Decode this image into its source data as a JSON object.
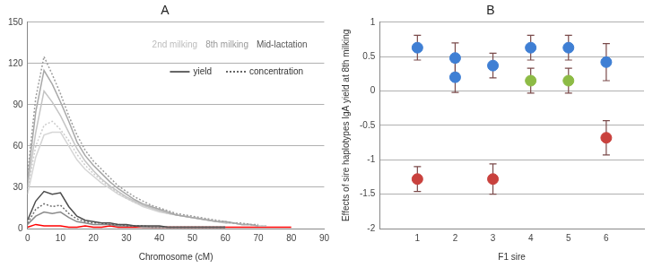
{
  "chart_data": [
    {
      "type": "line",
      "title": "A",
      "x_label": "Chromosome (cM)",
      "xlim": [
        0,
        90
      ],
      "xticks": [
        0,
        10,
        20,
        30,
        40,
        50,
        60,
        70,
        80,
        90
      ],
      "ylim": [
        0,
        150
      ],
      "yticks": [
        0,
        30,
        60,
        90,
        120,
        150
      ],
      "grid": true,
      "annotations": [
        {
          "text": "2nd milking",
          "color": "#bdbdbd"
        },
        {
          "text": "8th milking",
          "color": "#999999"
        },
        {
          "text": "Mid-lactation",
          "color": "#555555"
        }
      ],
      "line_key": [
        {
          "text": "yield",
          "line_style": "solid"
        },
        {
          "text": "concentration",
          "line_style": "dotted"
        }
      ],
      "x": [
        0,
        2.5,
        5,
        7.5,
        10,
        12.5,
        15,
        17.5,
        20,
        22.5,
        25,
        27.5,
        30,
        32.5,
        35,
        37.5,
        40,
        42.5,
        45,
        47.5,
        50,
        52.5,
        55,
        57.5,
        60,
        62.5,
        65,
        67.5,
        70,
        72.5,
        75,
        77.5,
        80
      ],
      "series": [
        {
          "color": "#9e9e9e",
          "line_style": "dotted",
          "values": [
            40,
            95,
            125,
            112,
            98,
            82,
            68,
            57,
            49,
            43,
            37,
            31,
            27,
            23,
            20,
            17,
            15,
            13,
            11,
            10,
            9,
            8,
            7,
            6,
            5,
            4,
            4,
            3,
            3,
            null,
            null,
            null,
            null
          ]
        },
        {
          "color": "#a8a8a8",
          "line_style": "solid",
          "values": [
            35,
            85,
            115,
            105,
            92,
            78,
            63,
            53,
            46,
            40,
            34,
            29,
            25,
            21,
            18,
            16,
            14,
            12,
            10,
            9,
            8,
            7,
            6,
            5,
            5,
            4,
            3,
            3,
            2,
            null,
            null,
            null,
            null
          ]
        },
        {
          "color": "#c4c4c4",
          "line_style": "solid",
          "values": [
            30,
            70,
            100,
            92,
            82,
            70,
            58,
            49,
            42,
            36,
            31,
            27,
            23,
            20,
            17,
            15,
            13,
            11,
            10,
            9,
            8,
            7,
            6,
            5,
            4,
            4,
            3,
            3,
            2,
            2,
            null,
            null,
            null
          ]
        },
        {
          "color": "#cccccc",
          "line_style": "dotted",
          "values": [
            28,
            60,
            75,
            78,
            72,
            64,
            54,
            46,
            40,
            35,
            30,
            26,
            22,
            19,
            17,
            15,
            13,
            11,
            10,
            9,
            8,
            7,
            6,
            5,
            4,
            4,
            3,
            3,
            2,
            2,
            null,
            null,
            null
          ]
        },
        {
          "color": "#d6d6d6",
          "line_style": "solid",
          "values": [
            25,
            52,
            68,
            70,
            70,
            60,
            50,
            43,
            38,
            33,
            29,
            25,
            22,
            19,
            16,
            14,
            12,
            11,
            10,
            9,
            8,
            7,
            6,
            5,
            5,
            4,
            3,
            3,
            2,
            null,
            null,
            null,
            null
          ]
        },
        {
          "color": "#4d4d4d",
          "line_style": "solid",
          "values": [
            6,
            20,
            27,
            25,
            26,
            16,
            9,
            6,
            5,
            4,
            4,
            3,
            3,
            2,
            2,
            2,
            2,
            1,
            1,
            1,
            1,
            1,
            1,
            1,
            1,
            null,
            null,
            null,
            null,
            null,
            null,
            null,
            null
          ]
        },
        {
          "color": "#6e6e6e",
          "line_style": "dotted",
          "values": [
            4,
            14,
            18,
            16,
            17,
            11,
            7,
            5,
            4,
            4,
            3,
            3,
            2,
            2,
            2,
            1,
            1,
            1,
            1,
            1,
            1,
            1,
            1,
            1,
            1,
            null,
            null,
            null,
            null,
            null,
            null,
            null,
            null
          ]
        },
        {
          "color": "#8a8a8a",
          "line_style": "solid",
          "values": [
            3,
            9,
            12,
            11,
            12,
            8,
            5,
            4,
            3,
            3,
            3,
            2,
            2,
            2,
            1,
            1,
            1,
            1,
            1,
            1,
            1,
            1,
            1,
            1,
            1,
            null,
            null,
            null,
            null,
            null,
            null,
            null,
            null
          ]
        },
        {
          "color": "#ff0000",
          "line_style": "solid",
          "values": [
            1,
            3,
            2,
            2,
            2,
            1,
            1,
            2,
            1,
            1,
            2,
            1,
            1,
            1,
            1,
            1,
            1,
            1,
            1,
            1,
            1,
            1,
            1,
            1,
            1,
            1,
            1,
            1,
            1,
            1,
            1,
            1,
            1
          ]
        }
      ]
    },
    {
      "type": "scatter",
      "title": "B",
      "x_label": "F1 sire",
      "y_label": "Effects of sire haplotypes IgA yield at 8th milking",
      "xlim": [
        0,
        7
      ],
      "xticks": [
        1,
        2,
        3,
        4,
        5,
        6
      ],
      "ylim": [
        -2,
        1
      ],
      "yticks": [
        -2,
        -1.5,
        -1,
        -0.5,
        0,
        0.5,
        1
      ],
      "grid": true,
      "marker": "circle",
      "x": [
        1,
        1,
        2,
        2,
        3,
        3,
        4,
        4,
        5,
        5,
        6,
        6
      ],
      "values": [
        0.63,
        -1.28,
        0.48,
        0.2,
        0.37,
        -1.28,
        0.63,
        0.15,
        0.63,
        0.15,
        0.42,
        -0.68
      ],
      "error": [
        0.18,
        0.18,
        0.22,
        0.22,
        0.18,
        0.22,
        0.18,
        0.18,
        0.18,
        0.18,
        0.27,
        0.25
      ],
      "colors": [
        "#3f7fd4",
        "#c9413d",
        "#3f7fd4",
        "#3f7fd4",
        "#3f7fd4",
        "#c9413d",
        "#3f7fd4",
        "#8dbb45",
        "#3f7fd4",
        "#8dbb45",
        "#3f7fd4",
        "#c9413d"
      ]
    }
  ]
}
